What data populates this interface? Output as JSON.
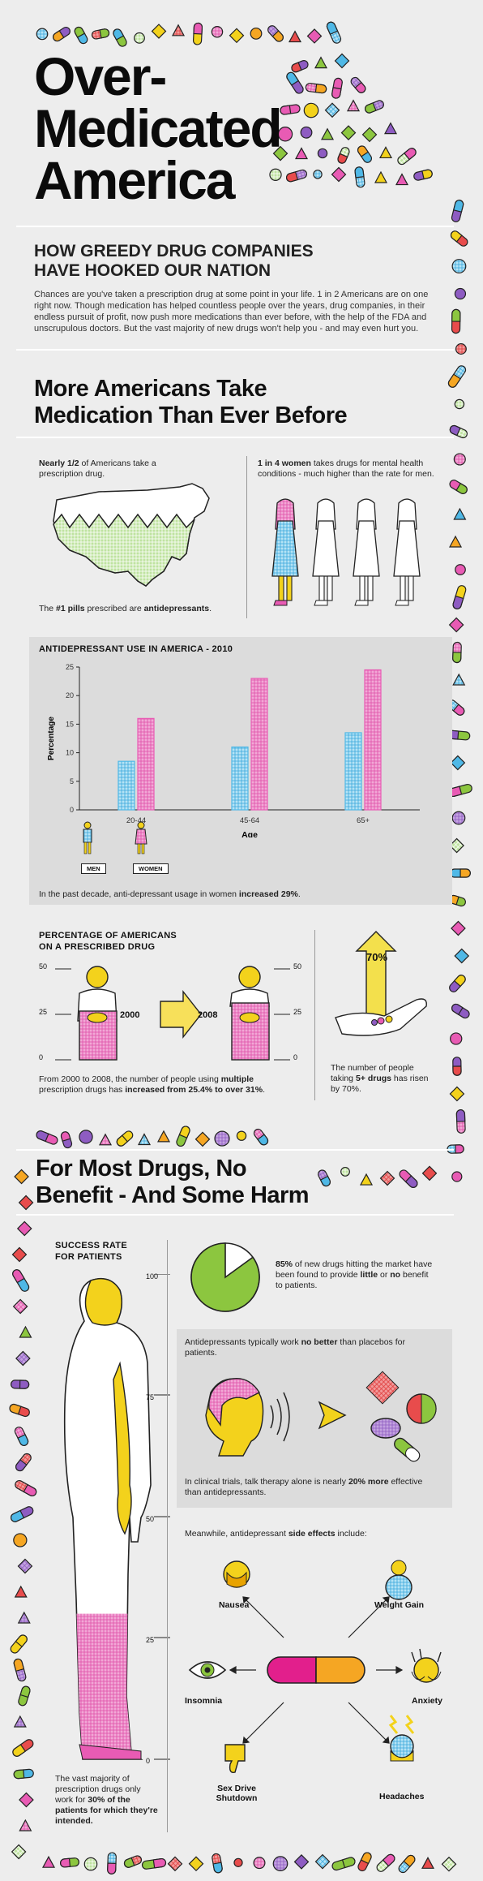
{
  "header": {
    "title_line1": "Over-",
    "title_line2": "Medicated",
    "title_line3": "America",
    "subtitle_line1": "HOW GREEDY DRUG COMPANIES",
    "subtitle_line2": "HAVE HOOKED OUR NATION",
    "intro": "Chances are you've taken a prescription drug at some point in your life. 1 in 2 Americans are on one right now. Though medication has helped countless people over the years, drug companies, in their endless pursuit of profit, now push more medications than ever before, with the help of the FDA and unscrupulous doctors. But the vast majority of new drugs won't help you - and may even hurt you."
  },
  "section1": {
    "heading_line1": "More Americans Take",
    "heading_line2": "Medication Than Ever Before",
    "stat_half_bold": "Nearly 1/2",
    "stat_half_rest": " of Americans take a prescription drug.",
    "stat_women_bold": "1 in 4 women",
    "stat_women_rest": " takes drugs for mental health conditions - much higher than the rate for men.",
    "pills_pre": "The ",
    "pills_bold1": "#1 pills",
    "pills_mid": " prescribed are ",
    "pills_bold2": "antidepressants",
    "pills_end": "."
  },
  "chart_section": {
    "title": "ANTIDEPRESSANT USE IN AMERICA - 2010",
    "legend_men": "MEN",
    "legend_women": "WOMEN",
    "caption_pre": "In the past decade, anti-depressant usage in women ",
    "caption_bold": "increased 29%",
    "caption_end": "."
  },
  "chart_data": {
    "type": "bar",
    "title": "ANTIDEPRESSANT USE IN AMERICA - 2010",
    "xlabel": "Age",
    "ylabel": "Percentage",
    "categories": [
      "20-44",
      "45-64",
      "65+"
    ],
    "series": [
      {
        "name": "MEN",
        "values": [
          8.5,
          11,
          13.5
        ]
      },
      {
        "name": "WOMEN",
        "values": [
          16,
          23,
          24.5
        ]
      }
    ],
    "ylim": [
      0,
      25
    ],
    "yticks": [
      "0",
      "5",
      "10",
      "15",
      "20",
      "25"
    ],
    "colors": {
      "men": "#4fb8e6",
      "women": "#e85bb4"
    },
    "grid": false
  },
  "prescribed": {
    "title_line1": "PERCENTAGE OF AMERICANS",
    "title_line2": "ON A PRESCRIBED DRUG",
    "scale": [
      "50",
      "25",
      "0"
    ],
    "year_from": "2000",
    "year_to": "2008",
    "caption_pre": "From 2000 to 2008, the number of people using ",
    "caption_bold1": "multiple",
    "caption_mid": " prescription drugs has ",
    "caption_bold2": "increased from 25.4% to over 31%",
    "caption_end": ".",
    "arrow_label": "70%",
    "five_pre": "The number of people taking ",
    "five_bold": "5+ drugs",
    "five_end": " has risen by 70%."
  },
  "section2": {
    "heading_line1": "For Most Drugs, No",
    "heading_line2": "Benefit - And Some Harm",
    "success_title_line1": "SUCCESS RATE",
    "success_title_line2": "FOR PATIENTS",
    "scale": [
      "100",
      "75",
      "50",
      "25",
      "0"
    ],
    "success_value": 30,
    "success_caption_pre": "The vast majority of prescription drugs only work for ",
    "success_caption_bold": "30% of the patients for which they're intended.",
    "pie_value": 85,
    "pie_pre": "",
    "pie_bold1": "85%",
    "pie_mid": " of new drugs hitting the market have been found to provide ",
    "pie_bold2": "little",
    "pie_mid2": " or ",
    "pie_bold3": "no",
    "pie_end": " benefit to patients.",
    "placebo_pre": "Antidepressants typically work ",
    "placebo_bold": "no better",
    "placebo_end": " than placebos for patients.",
    "therapy_pre": "In clinical trials, talk therapy alone is nearly ",
    "therapy_bold": "20% more",
    "therapy_end": " effective than antidepressants.",
    "side_pre": "Meanwhile, antidepressant ",
    "side_bold": "side effects",
    "side_end": " include:",
    "effects": {
      "nausea": "Nausea",
      "weight": "Weight Gain",
      "insomnia": "Insomnia",
      "anxiety": "Anxiety",
      "sexdrive": "Sex Drive Shutdown",
      "headaches": "Headaches"
    }
  }
}
